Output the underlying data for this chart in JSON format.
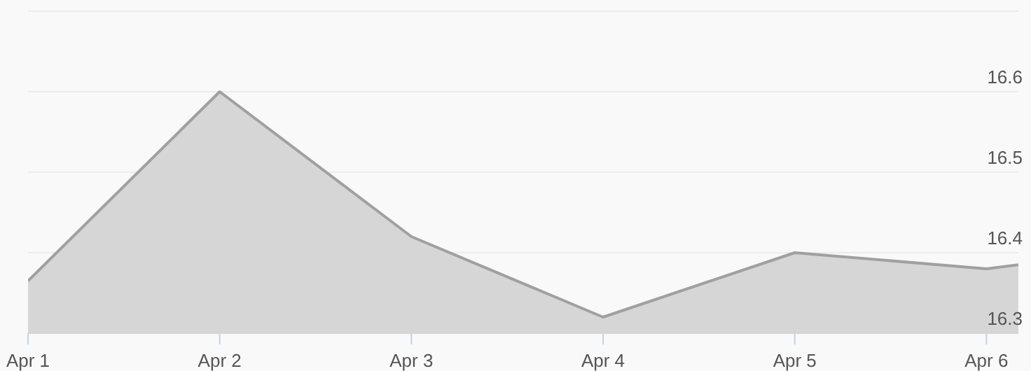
{
  "chart_data": {
    "type": "area",
    "x": [
      "--04-01",
      "--04-02",
      "--04-03",
      "--04-04",
      "--04-05",
      "--04-06",
      "--04-06T04:00"
    ],
    "series": [
      {
        "color": "#a0a0a0",
        "values": [
          16.365,
          16.6,
          16.42,
          16.32,
          16.4,
          16.38,
          16.385
        ]
      }
    ],
    "xlim": [
      "--04-01",
      "--04-06T04:00"
    ],
    "xticks": [
      {
        "value": "--04-01",
        "label": "Apr 1"
      },
      {
        "value": "--04-02",
        "label": "Apr 2"
      },
      {
        "value": "--04-03",
        "label": "Apr 3"
      },
      {
        "value": "--04-04",
        "label": "Apr 4"
      },
      {
        "value": "--04-05",
        "label": "Apr 5"
      },
      {
        "value": "--04-06",
        "label": "Apr 6"
      }
    ],
    "ylim": [
      16.3,
      16.7
    ],
    "yticks": [
      16.3,
      16.4,
      16.5,
      16.6,
      {
        "value": 16.7,
        "label": null
      }
    ],
    "grid": "y",
    "legend": false,
    "marker": "none",
    "line_style": "solid"
  }
}
